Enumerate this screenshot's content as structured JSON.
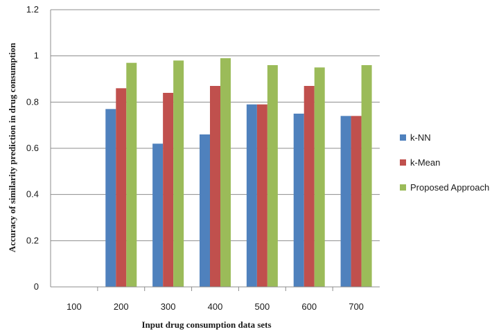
{
  "chart_data": {
    "type": "bar",
    "title": "",
    "xlabel": "Input drug consumption data sets",
    "ylabel": "Accuracy of similarity prediction in drug consumption",
    "categories": [
      "100",
      "200",
      "300",
      "400",
      "500",
      "600",
      "700"
    ],
    "ylim": [
      0,
      1.2
    ],
    "yticks": [
      "0",
      "0.2",
      "0.4",
      "0.6",
      "0.8",
      "1",
      "1.2"
    ],
    "grid": true,
    "legend_position": "right",
    "series": [
      {
        "name": "k-NN",
        "color": "#4f81bd",
        "values": [
          0,
          0.77,
          0.62,
          0.66,
          0.79,
          0.75,
          0.74
        ]
      },
      {
        "name": "k-Mean",
        "color": "#c0504d",
        "values": [
          0,
          0.86,
          0.84,
          0.87,
          0.79,
          0.87,
          0.74
        ]
      },
      {
        "name": "Proposed Approach",
        "color": "#9bbb59",
        "values": [
          0,
          0.97,
          0.98,
          0.99,
          0.96,
          0.95,
          0.96
        ]
      }
    ]
  }
}
